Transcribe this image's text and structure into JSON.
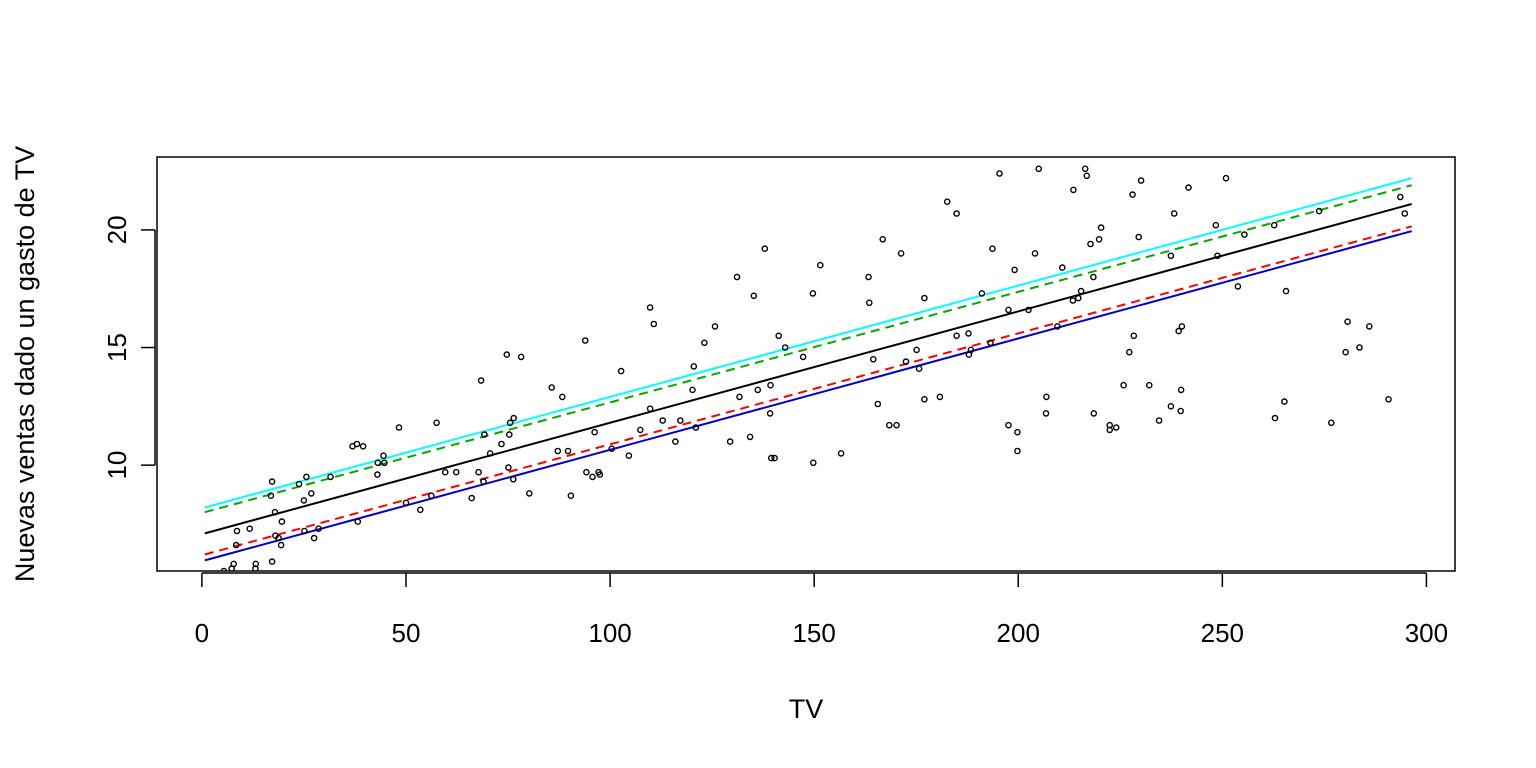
{
  "chart_data": {
    "type": "scatter",
    "title": "",
    "xlabel": "TV",
    "ylabel": "Nuevas ventas dado un gasto de TV",
    "xlim": [
      -11,
      307
    ],
    "ylim": [
      5.5,
      23.1
    ],
    "xticks": [
      0,
      50,
      100,
      150,
      200,
      250,
      300
    ],
    "yticks": [
      10,
      15,
      20
    ],
    "xtick_labels": [
      "0",
      "50",
      "100",
      "150",
      "200",
      "250",
      "300"
    ],
    "ytick_labels": [
      "10",
      "15",
      "20"
    ],
    "grid": false,
    "legend": "none",
    "points": [
      [
        5.4,
        5.5
      ],
      [
        7.3,
        5.6
      ],
      [
        7.8,
        5.8
      ],
      [
        8.4,
        6.6
      ],
      [
        8.6,
        7.2
      ],
      [
        11.7,
        7.3
      ],
      [
        13.1,
        5.6
      ],
      [
        13.2,
        5.8
      ],
      [
        16.9,
        8.7
      ],
      [
        17.2,
        9.3
      ],
      [
        17.2,
        5.9
      ],
      [
        18.0,
        7.0
      ],
      [
        18.8,
        6.9
      ],
      [
        19.4,
        6.6
      ],
      [
        19.6,
        7.6
      ],
      [
        17.9,
        8.0
      ],
      [
        23.8,
        9.2
      ],
      [
        25.0,
        8.5
      ],
      [
        25.1,
        7.2
      ],
      [
        25.6,
        9.5
      ],
      [
        26.8,
        8.8
      ],
      [
        27.5,
        6.9
      ],
      [
        28.6,
        7.3
      ],
      [
        31.5,
        9.5
      ],
      [
        36.9,
        10.8
      ],
      [
        38.0,
        10.9
      ],
      [
        38.2,
        7.6
      ],
      [
        39.5,
        10.8
      ],
      [
        43.0,
        9.6
      ],
      [
        43.1,
        10.1
      ],
      [
        44.5,
        10.4
      ],
      [
        44.7,
        10.1
      ],
      [
        48.3,
        11.6
      ],
      [
        50.0,
        8.4
      ],
      [
        53.5,
        8.1
      ],
      [
        56.2,
        8.7
      ],
      [
        57.5,
        11.8
      ],
      [
        59.6,
        9.7
      ],
      [
        62.3,
        9.7
      ],
      [
        66.1,
        8.6
      ],
      [
        67.8,
        9.7
      ],
      [
        68.4,
        13.6
      ],
      [
        69.0,
        9.3
      ],
      [
        69.2,
        11.3
      ],
      [
        70.6,
        10.5
      ],
      [
        73.4,
        10.9
      ],
      [
        74.7,
        14.7
      ],
      [
        75.1,
        9.9
      ],
      [
        75.3,
        11.3
      ],
      [
        75.5,
        11.8
      ],
      [
        76.3,
        9.4
      ],
      [
        76.4,
        12.0
      ],
      [
        78.2,
        14.6
      ],
      [
        80.2,
        8.8
      ],
      [
        85.7,
        13.3
      ],
      [
        87.2,
        10.6
      ],
      [
        88.3,
        12.9
      ],
      [
        89.7,
        10.6
      ],
      [
        90.4,
        8.7
      ],
      [
        93.9,
        15.3
      ],
      [
        94.2,
        9.7
      ],
      [
        95.7,
        9.5
      ],
      [
        96.2,
        11.4
      ],
      [
        97.2,
        9.7
      ],
      [
        97.5,
        9.6
      ],
      [
        100.4,
        10.7
      ],
      [
        102.7,
        14.0
      ],
      [
        104.6,
        10.4
      ],
      [
        107.4,
        11.5
      ],
      [
        109.8,
        16.7
      ],
      [
        110.7,
        16.0
      ],
      [
        109.8,
        12.4
      ],
      [
        112.9,
        11.9
      ],
      [
        116.0,
        11.0
      ],
      [
        117.2,
        11.9
      ],
      [
        120.2,
        13.2
      ],
      [
        120.5,
        14.2
      ],
      [
        121.0,
        11.6
      ],
      [
        123.1,
        15.2
      ],
      [
        125.7,
        15.9
      ],
      [
        129.4,
        11.0
      ],
      [
        131.1,
        18.0
      ],
      [
        131.7,
        12.9
      ],
      [
        134.3,
        11.2
      ],
      [
        135.2,
        17.2
      ],
      [
        136.2,
        13.2
      ],
      [
        137.9,
        19.2
      ],
      [
        139.2,
        12.2
      ],
      [
        139.3,
        13.4
      ],
      [
        139.5,
        10.3
      ],
      [
        140.3,
        10.3
      ],
      [
        141.3,
        15.5
      ],
      [
        142.9,
        15.0
      ],
      [
        147.3,
        14.6
      ],
      [
        149.7,
        17.3
      ],
      [
        149.8,
        10.1
      ],
      [
        151.5,
        18.5
      ],
      [
        156.6,
        10.5
      ],
      [
        163.3,
        18.0
      ],
      [
        163.5,
        16.9
      ],
      [
        164.5,
        14.5
      ],
      [
        165.6,
        12.6
      ],
      [
        166.8,
        19.6
      ],
      [
        168.4,
        11.7
      ],
      [
        170.2,
        11.7
      ],
      [
        171.3,
        19.0
      ],
      [
        172.5,
        14.4
      ],
      [
        175.1,
        14.9
      ],
      [
        175.7,
        14.1
      ],
      [
        177.0,
        12.8
      ],
      [
        177.0,
        17.1
      ],
      [
        180.8,
        12.9
      ],
      [
        182.6,
        21.2
      ],
      [
        184.9,
        20.7
      ],
      [
        184.9,
        15.5
      ],
      [
        187.8,
        15.6
      ],
      [
        187.9,
        14.7
      ],
      [
        188.4,
        14.9
      ],
      [
        191.1,
        17.3
      ],
      [
        193.2,
        15.2
      ],
      [
        193.7,
        19.2
      ],
      [
        195.4,
        22.4
      ],
      [
        197.6,
        11.7
      ],
      [
        197.6,
        16.6
      ],
      [
        199.1,
        18.3
      ],
      [
        199.8,
        11.4
      ],
      [
        199.8,
        10.6
      ],
      [
        202.5,
        16.6
      ],
      [
        204.1,
        19.0
      ],
      [
        205.0,
        22.6
      ],
      [
        206.8,
        12.2
      ],
      [
        206.9,
        12.9
      ],
      [
        209.6,
        15.9
      ],
      [
        210.8,
        18.4
      ],
      [
        213.4,
        17.0
      ],
      [
        213.5,
        21.7
      ],
      [
        214.7,
        17.1
      ],
      [
        215.4,
        17.4
      ],
      [
        216.4,
        22.6
      ],
      [
        216.8,
        22.3
      ],
      [
        217.7,
        19.4
      ],
      [
        218.4,
        18.0
      ],
      [
        218.5,
        12.2
      ],
      [
        219.8,
        19.6
      ],
      [
        220.3,
        20.1
      ],
      [
        222.4,
        11.5
      ],
      [
        222.4,
        11.7
      ],
      [
        224.0,
        11.6
      ],
      [
        225.8,
        13.4
      ],
      [
        227.2,
        14.8
      ],
      [
        228.0,
        21.5
      ],
      [
        228.3,
        15.5
      ],
      [
        229.5,
        19.7
      ],
      [
        230.1,
        22.1
      ],
      [
        232.1,
        13.4
      ],
      [
        234.5,
        11.9
      ],
      [
        237.4,
        12.5
      ],
      [
        237.4,
        18.9
      ],
      [
        238.2,
        20.7
      ],
      [
        239.3,
        15.7
      ],
      [
        239.8,
        12.3
      ],
      [
        239.9,
        13.2
      ],
      [
        240.1,
        15.9
      ],
      [
        241.7,
        21.8
      ],
      [
        248.4,
        20.2
      ],
      [
        248.8,
        18.9
      ],
      [
        250.9,
        22.2
      ],
      [
        253.8,
        17.6
      ],
      [
        255.4,
        19.8
      ],
      [
        262.7,
        20.2
      ],
      [
        262.9,
        12.0
      ],
      [
        265.2,
        12.7
      ],
      [
        265.6,
        17.4
      ],
      [
        273.7,
        20.8
      ],
      [
        276.7,
        11.8
      ],
      [
        280.2,
        14.8
      ],
      [
        280.7,
        16.1
      ],
      [
        283.6,
        15.0
      ],
      [
        286.0,
        15.9
      ],
      [
        290.7,
        12.8
      ],
      [
        293.6,
        21.4
      ],
      [
        294.7,
        20.7
      ]
    ],
    "lines": [
      {
        "color": "#00ffff",
        "style": "solid",
        "x": [
          0.7,
          296.4
        ],
        "y": [
          8.2,
          22.2
        ]
      },
      {
        "color": "#00aa00",
        "style": "dashed",
        "x": [
          0.7,
          296.4
        ],
        "y": [
          8.0,
          21.9
        ]
      },
      {
        "color": "#000000",
        "style": "solid",
        "x": [
          0.7,
          296.4
        ],
        "y": [
          7.1,
          21.1
        ]
      },
      {
        "color": "#ff0000",
        "style": "dashed",
        "x": [
          0.7,
          296.4
        ],
        "y": [
          6.2,
          20.15
        ]
      },
      {
        "color": "#0000cc",
        "style": "solid",
        "x": [
          0.7,
          296.4
        ],
        "y": [
          5.95,
          19.95
        ]
      }
    ]
  }
}
